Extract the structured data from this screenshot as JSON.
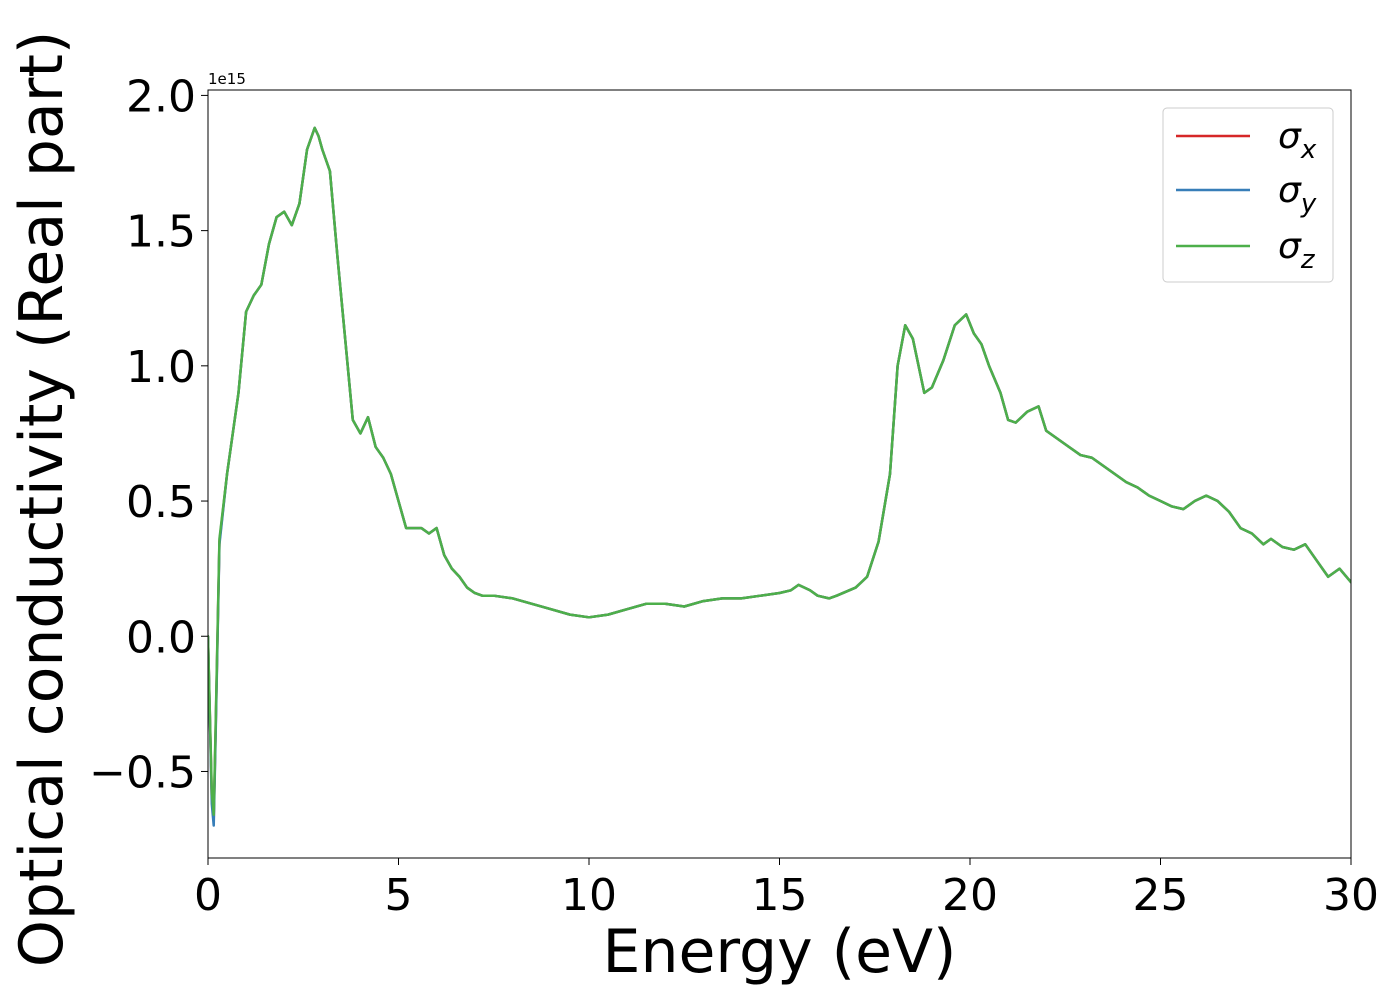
{
  "chart_data": {
    "type": "line",
    "title": "",
    "xlabel": "Energy (eV)",
    "ylabel": "Optical conductivity (Real part)",
    "y_offset_label": "1e15",
    "xlim": [
      0,
      30
    ],
    "ylim": [
      -0.82,
      2.02
    ],
    "xticks": [
      0,
      5,
      10,
      15,
      20,
      25,
      30
    ],
    "xtick_labels": [
      "0",
      "5",
      "10",
      "15",
      "20",
      "25",
      "30"
    ],
    "yticks": [
      -0.5,
      0.0,
      0.5,
      1.0,
      1.5,
      2.0
    ],
    "ytick_labels": [
      "−0.5",
      "0.0",
      "0.5",
      "1.0",
      "1.5",
      "2.0"
    ],
    "grid": false,
    "legend_position": "top-right",
    "x": [
      0.0,
      0.1,
      0.15,
      0.2,
      0.3,
      0.5,
      0.8,
      1.0,
      1.2,
      1.4,
      1.6,
      1.8,
      2.0,
      2.2,
      2.4,
      2.6,
      2.8,
      2.9,
      3.0,
      3.2,
      3.4,
      3.6,
      3.8,
      4.0,
      4.2,
      4.4,
      4.6,
      4.8,
      5.0,
      5.2,
      5.4,
      5.6,
      5.8,
      6.0,
      6.2,
      6.4,
      6.6,
      6.8,
      7.0,
      7.2,
      7.5,
      8.0,
      8.5,
      9.0,
      9.5,
      10.0,
      10.5,
      11.0,
      11.5,
      12.0,
      12.5,
      13.0,
      13.5,
      14.0,
      14.5,
      15.0,
      15.3,
      15.5,
      15.8,
      16.0,
      16.3,
      16.5,
      17.0,
      17.3,
      17.6,
      17.9,
      18.1,
      18.3,
      18.5,
      18.8,
      19.0,
      19.3,
      19.6,
      19.9,
      20.1,
      20.3,
      20.5,
      20.8,
      21.0,
      21.2,
      21.5,
      21.8,
      22.0,
      22.3,
      22.6,
      22.9,
      23.2,
      23.5,
      23.8,
      24.1,
      24.4,
      24.7,
      25.0,
      25.3,
      25.6,
      25.9,
      26.2,
      26.5,
      26.8,
      27.1,
      27.4,
      27.7,
      27.9,
      28.2,
      28.5,
      28.8,
      29.1,
      29.4,
      29.7,
      30.0
    ],
    "series": [
      {
        "name": "σx",
        "color": "#d62728",
        "values": [
          0.0,
          -0.6,
          -0.68,
          -0.35,
          0.35,
          0.6,
          0.9,
          1.2,
          1.26,
          1.3,
          1.45,
          1.55,
          1.57,
          1.52,
          1.6,
          1.8,
          1.88,
          1.85,
          1.8,
          1.72,
          1.4,
          1.1,
          0.8,
          0.75,
          0.81,
          0.7,
          0.66,
          0.6,
          0.5,
          0.4,
          0.4,
          0.4,
          0.38,
          0.4,
          0.3,
          0.25,
          0.22,
          0.18,
          0.16,
          0.15,
          0.15,
          0.14,
          0.12,
          0.1,
          0.08,
          0.07,
          0.08,
          0.1,
          0.12,
          0.12,
          0.11,
          0.13,
          0.14,
          0.14,
          0.15,
          0.16,
          0.17,
          0.19,
          0.17,
          0.15,
          0.14,
          0.15,
          0.18,
          0.22,
          0.35,
          0.6,
          1.0,
          1.15,
          1.1,
          0.9,
          0.92,
          1.02,
          1.15,
          1.19,
          1.12,
          1.08,
          1.0,
          0.9,
          0.8,
          0.79,
          0.83,
          0.85,
          0.76,
          0.73,
          0.7,
          0.67,
          0.66,
          0.63,
          0.6,
          0.57,
          0.55,
          0.52,
          0.5,
          0.48,
          0.47,
          0.5,
          0.52,
          0.5,
          0.46,
          0.4,
          0.38,
          0.34,
          0.36,
          0.33,
          0.32,
          0.34,
          0.28,
          0.22,
          0.25,
          0.2
        ]
      },
      {
        "name": "σy",
        "color": "#377eb8",
        "values": [
          0.0,
          -0.62,
          -0.7,
          -0.37,
          0.34,
          0.6,
          0.9,
          1.2,
          1.26,
          1.3,
          1.45,
          1.55,
          1.57,
          1.52,
          1.6,
          1.8,
          1.88,
          1.85,
          1.8,
          1.72,
          1.4,
          1.1,
          0.8,
          0.75,
          0.81,
          0.7,
          0.66,
          0.6,
          0.5,
          0.4,
          0.4,
          0.4,
          0.38,
          0.4,
          0.3,
          0.25,
          0.22,
          0.18,
          0.16,
          0.15,
          0.15,
          0.14,
          0.12,
          0.1,
          0.08,
          0.07,
          0.08,
          0.1,
          0.12,
          0.12,
          0.11,
          0.13,
          0.14,
          0.14,
          0.15,
          0.16,
          0.17,
          0.19,
          0.17,
          0.15,
          0.14,
          0.15,
          0.18,
          0.22,
          0.35,
          0.6,
          1.0,
          1.15,
          1.1,
          0.9,
          0.92,
          1.02,
          1.15,
          1.19,
          1.12,
          1.08,
          1.0,
          0.9,
          0.8,
          0.79,
          0.83,
          0.85,
          0.76,
          0.73,
          0.7,
          0.67,
          0.66,
          0.63,
          0.6,
          0.57,
          0.55,
          0.52,
          0.5,
          0.48,
          0.47,
          0.5,
          0.52,
          0.5,
          0.46,
          0.4,
          0.38,
          0.34,
          0.36,
          0.33,
          0.32,
          0.34,
          0.28,
          0.22,
          0.25,
          0.2
        ]
      },
      {
        "name": "σz",
        "color": "#4daf4a",
        "values": [
          0.0,
          -0.58,
          -0.66,
          -0.33,
          0.36,
          0.6,
          0.9,
          1.2,
          1.26,
          1.3,
          1.45,
          1.55,
          1.57,
          1.52,
          1.6,
          1.8,
          1.88,
          1.85,
          1.8,
          1.72,
          1.4,
          1.1,
          0.8,
          0.75,
          0.81,
          0.7,
          0.66,
          0.6,
          0.5,
          0.4,
          0.4,
          0.4,
          0.38,
          0.4,
          0.3,
          0.25,
          0.22,
          0.18,
          0.16,
          0.15,
          0.15,
          0.14,
          0.12,
          0.1,
          0.08,
          0.07,
          0.08,
          0.1,
          0.12,
          0.12,
          0.11,
          0.13,
          0.14,
          0.14,
          0.15,
          0.16,
          0.17,
          0.19,
          0.17,
          0.15,
          0.14,
          0.15,
          0.18,
          0.22,
          0.35,
          0.6,
          1.0,
          1.15,
          1.1,
          0.9,
          0.92,
          1.02,
          1.15,
          1.19,
          1.12,
          1.08,
          1.0,
          0.9,
          0.8,
          0.79,
          0.83,
          0.85,
          0.76,
          0.73,
          0.7,
          0.67,
          0.66,
          0.63,
          0.6,
          0.57,
          0.55,
          0.52,
          0.5,
          0.48,
          0.47,
          0.5,
          0.52,
          0.5,
          0.46,
          0.4,
          0.38,
          0.34,
          0.36,
          0.33,
          0.32,
          0.34,
          0.28,
          0.22,
          0.25,
          0.2
        ]
      }
    ]
  },
  "legend": {
    "entries": [
      {
        "symbol": "σ",
        "subscript": "x"
      },
      {
        "symbol": "σ",
        "subscript": "y"
      },
      {
        "symbol": "σ",
        "subscript": "z"
      }
    ]
  }
}
